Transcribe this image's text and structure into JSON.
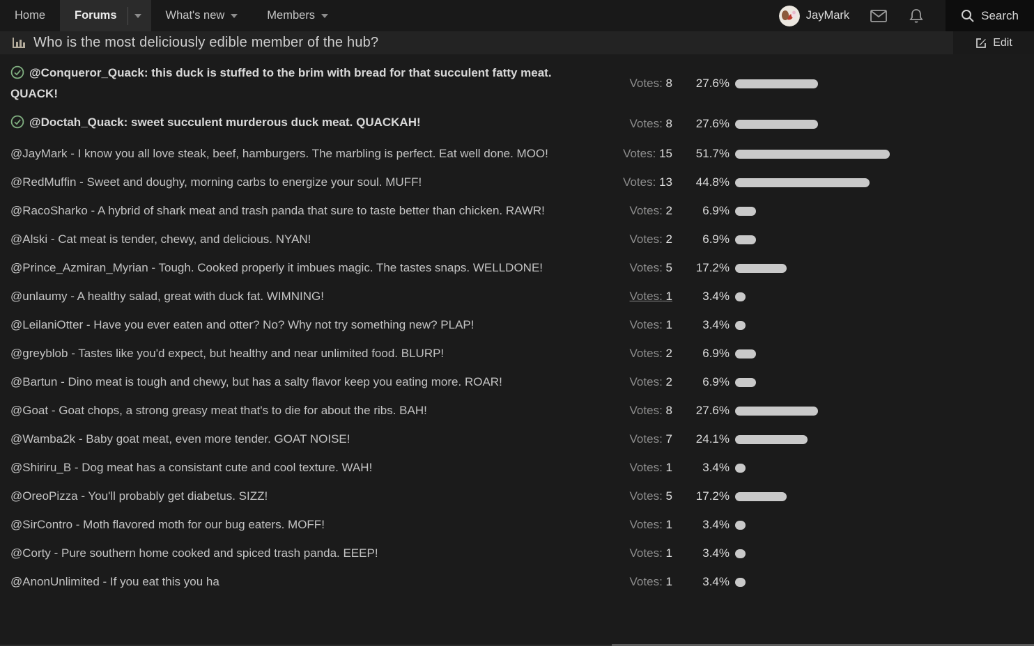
{
  "nav": {
    "home": "Home",
    "forums": "Forums",
    "whats_new": "What's new",
    "members": "Members",
    "username": "JayMark",
    "search_label": "Search"
  },
  "poll": {
    "title": "Who is the most deliciously edible member of the hub?",
    "edit_label": "Edit",
    "votes_label": "Votes:",
    "options": [
      {
        "text": "@Conqueror_Quack: this duck is stuffed to the brim with bread for that succulent fatty meat. QUACK!",
        "votes": 8,
        "percent": 27.6,
        "percent_label": "27.6%",
        "voted": true,
        "votes_underlined": false
      },
      {
        "text": "@Doctah_Quack: sweet succulent murderous duck meat. QUACKAH!",
        "votes": 8,
        "percent": 27.6,
        "percent_label": "27.6%",
        "voted": true,
        "votes_underlined": false
      },
      {
        "text": "@JayMark - I know you all love steak, beef, hamburgers. The marbling is perfect. Eat well done. MOO!",
        "votes": 15,
        "percent": 51.7,
        "percent_label": "51.7%",
        "voted": false,
        "votes_underlined": false
      },
      {
        "text": "@RedMuffin - Sweet and doughy, morning carbs to energize your soul. MUFF!",
        "votes": 13,
        "percent": 44.8,
        "percent_label": "44.8%",
        "voted": false,
        "votes_underlined": false
      },
      {
        "text": "@RacoSharko - A hybrid of shark meat and trash panda that sure to taste better than chicken. RAWR!",
        "votes": 2,
        "percent": 6.9,
        "percent_label": "6.9%",
        "voted": false,
        "votes_underlined": false
      },
      {
        "text": "@Alski - Cat meat is tender, chewy, and delicious. NYAN!",
        "votes": 2,
        "percent": 6.9,
        "percent_label": "6.9%",
        "voted": false,
        "votes_underlined": false
      },
      {
        "text": "@Prince_Azmiran_Myrian - Tough. Cooked properly it imbues magic. The tastes snaps. WELLDONE!",
        "votes": 5,
        "percent": 17.2,
        "percent_label": "17.2%",
        "voted": false,
        "votes_underlined": false
      },
      {
        "text": "@unlaumy - A healthy salad, great with duck fat. WIMNING!",
        "votes": 1,
        "percent": 3.4,
        "percent_label": "3.4%",
        "voted": false,
        "votes_underlined": true
      },
      {
        "text": "@LeilaniOtter - Have you ever eaten and otter? No? Why not try something new? PLAP!",
        "votes": 1,
        "percent": 3.4,
        "percent_label": "3.4%",
        "voted": false,
        "votes_underlined": false
      },
      {
        "text": "@greyblob - Tastes like you'd expect, but healthy and near unlimited food. BLURP!",
        "votes": 2,
        "percent": 6.9,
        "percent_label": "6.9%",
        "voted": false,
        "votes_underlined": false
      },
      {
        "text": "@Bartun - Dino meat is tough and chewy, but has a salty flavor keep you eating more. ROAR!",
        "votes": 2,
        "percent": 6.9,
        "percent_label": "6.9%",
        "voted": false,
        "votes_underlined": false
      },
      {
        "text": "@Goat - Goat chops, a strong greasy meat that's to die for about the ribs. BAH!",
        "votes": 8,
        "percent": 27.6,
        "percent_label": "27.6%",
        "voted": false,
        "votes_underlined": false
      },
      {
        "text": "@Wamba2k - Baby goat meat, even more tender. GOAT NOISE!",
        "votes": 7,
        "percent": 24.1,
        "percent_label": "24.1%",
        "voted": false,
        "votes_underlined": false
      },
      {
        "text": "@Shiriru_B - Dog meat has a consistant cute and cool texture. WAH!",
        "votes": 1,
        "percent": 3.4,
        "percent_label": "3.4%",
        "voted": false,
        "votes_underlined": false
      },
      {
        "text": "@OreoPizza - You'll probably get diabetus. SIZZ!",
        "votes": 5,
        "percent": 17.2,
        "percent_label": "17.2%",
        "voted": false,
        "votes_underlined": false
      },
      {
        "text": "@SirContro - Moth flavored moth for our bug eaters. MOFF!",
        "votes": 1,
        "percent": 3.4,
        "percent_label": "3.4%",
        "voted": false,
        "votes_underlined": false
      },
      {
        "text": "@Corty - Pure southern home cooked and spiced trash panda. EEEP!",
        "votes": 1,
        "percent": 3.4,
        "percent_label": "3.4%",
        "voted": false,
        "votes_underlined": false
      },
      {
        "text": "@AnonUnlimited - If you eat this you ha",
        "votes": 1,
        "percent": 3.4,
        "percent_label": "3.4%",
        "voted": false,
        "votes_underlined": false
      }
    ]
  },
  "colors": {
    "voted_check": "#7fae7f",
    "bar_fill": "#c9c9c9",
    "nav_active_bg": "#2b2b2b",
    "page_bg": "#1b1b1b"
  }
}
